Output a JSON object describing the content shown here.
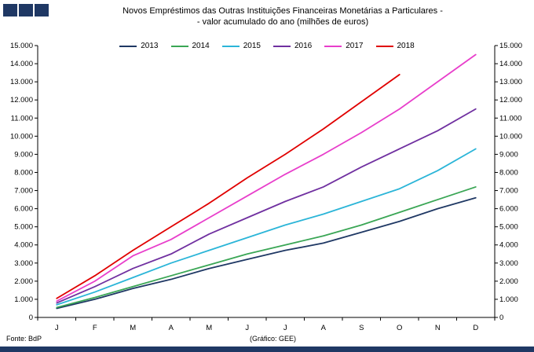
{
  "header": {
    "title_line1": "Novos Empréstimos das Outras Instituições Financeiras Monetárias a Particulares -",
    "title_line2": "- valor acumulado do ano (milhões de euros)"
  },
  "footer": {
    "source": "Fonte: BdP",
    "credit": "(Gráfico: GEE)"
  },
  "colors": {
    "brand": "#1F3864"
  },
  "chart_data": {
    "type": "line",
    "title": "Novos Empréstimos das Outras Instituições Financeiras Monetárias a Particulares - valor acumulado do ano (milhões de euros)",
    "categories": [
      "J",
      "F",
      "M",
      "A",
      "M",
      "J",
      "J",
      "A",
      "S",
      "O",
      "N",
      "D"
    ],
    "series": [
      {
        "name": "2013",
        "color": "#1F3864",
        "values": [
          500,
          1000,
          1600,
          2100,
          2700,
          3200,
          3700,
          4100,
          4700,
          5300,
          6000,
          6600
        ]
      },
      {
        "name": "2014",
        "color": "#3AA655",
        "values": [
          550,
          1100,
          1700,
          2300,
          2900,
          3500,
          4000,
          4500,
          5100,
          5800,
          6500,
          7200
        ]
      },
      {
        "name": "2015",
        "color": "#2BB5D8",
        "values": [
          700,
          1400,
          2200,
          3000,
          3700,
          4400,
          5100,
          5700,
          6400,
          7100,
          8100,
          9300
        ]
      },
      {
        "name": "2016",
        "color": "#7030A0",
        "values": [
          800,
          1700,
          2700,
          3500,
          4600,
          5500,
          6400,
          7200,
          8300,
          9300,
          10300,
          11500
        ]
      },
      {
        "name": "2017",
        "color": "#E83ECB",
        "values": [
          900,
          2000,
          3400,
          4300,
          5500,
          6700,
          7900,
          9000,
          10200,
          11500,
          13000,
          14500
        ]
      },
      {
        "name": "2018",
        "color": "#E00000",
        "values": [
          1050,
          2300,
          3700,
          5000,
          6300,
          7700,
          9000,
          10400,
          11900,
          13400
        ]
      }
    ],
    "ylim": [
      0,
      15000
    ],
    "ytick_step": 1000,
    "ytick_label_format": "thousands-dot",
    "grid": false,
    "legend_position": "top",
    "axis_sides": [
      "left",
      "right",
      "bottom"
    ]
  }
}
